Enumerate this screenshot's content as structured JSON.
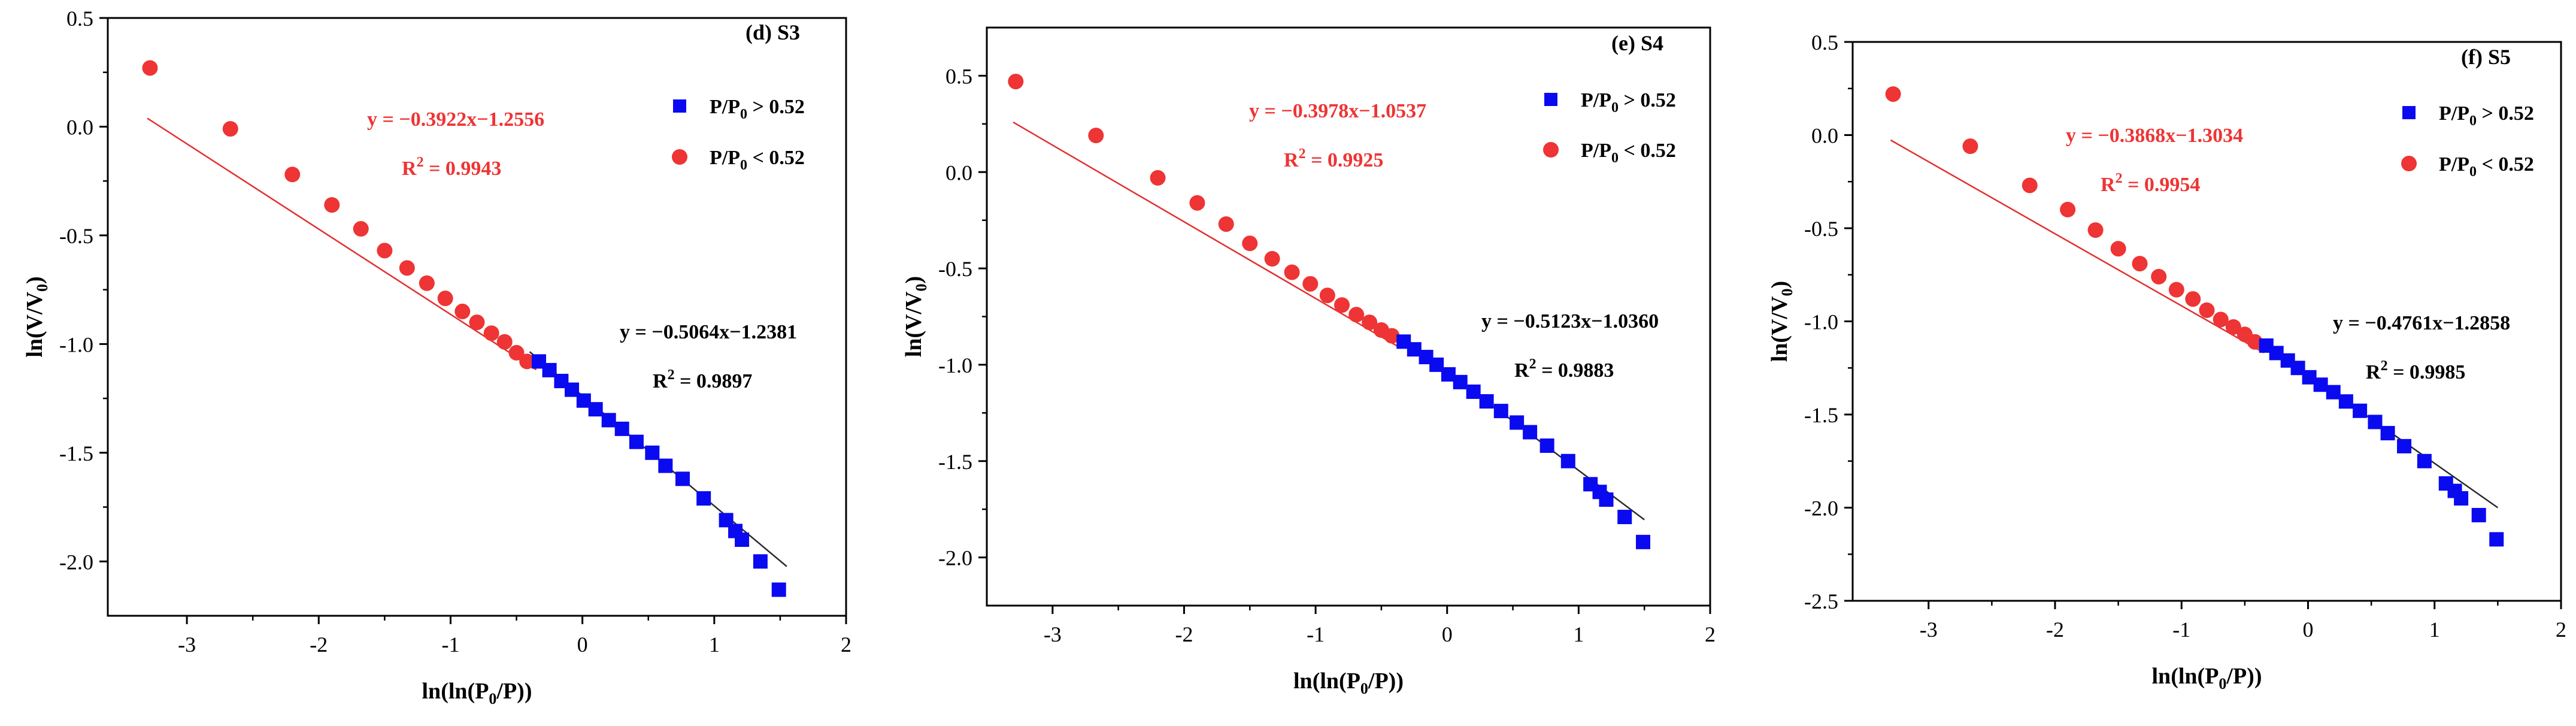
{
  "figure": {
    "colors": {
      "blue": "#0a0af0",
      "red": "#ee3434",
      "fit_red": "#e23030",
      "fit_black": "#2a2a2a",
      "axis": "#000000"
    }
  },
  "chart_data": [
    {
      "type": "scatter",
      "panel_label": "(d) S3",
      "xlabel": "ln(ln(P0/P))",
      "ylabel": "ln(V/V0)",
      "xlim": [
        -3.6,
        2.0
      ],
      "ylim": [
        -2.25,
        0.5
      ],
      "xticks": [
        -3,
        -2,
        -1,
        0,
        1,
        2
      ],
      "yticks": [
        0.5,
        0.0,
        -0.5,
        -1.0,
        -1.5,
        -2.0
      ],
      "ytick_labels": [
        "0.5",
        "0.0",
        "-0.5",
        "-1.0",
        "-1.5",
        "-2.0"
      ],
      "legend": [
        "P/P0 > 0.52",
        "P/P0 < 0.52"
      ],
      "series": [
        {
          "name": "P/P0 < 0.52",
          "marker": "circle",
          "color": "#ee3434",
          "x": [
            -3.28,
            -2.67,
            -2.2,
            -1.9,
            -1.68,
            -1.5,
            -1.33,
            -1.18,
            -1.04,
            -0.91,
            -0.8,
            -0.69,
            -0.59,
            -0.5,
            -0.42
          ],
          "y": [
            0.27,
            -0.01,
            -0.22,
            -0.36,
            -0.47,
            -0.57,
            -0.65,
            -0.72,
            -0.79,
            -0.85,
            -0.9,
            -0.95,
            -0.99,
            -1.04,
            -1.08
          ]
        },
        {
          "name": "P/P0 > 0.52",
          "marker": "square",
          "color": "#0a0af0",
          "x": [
            -0.33,
            -0.25,
            -0.16,
            -0.08,
            0.01,
            0.1,
            0.2,
            0.3,
            0.41,
            0.53,
            0.63,
            0.76,
            0.92,
            1.09,
            1.16,
            1.21,
            1.35,
            1.49
          ],
          "y": [
            -1.08,
            -1.12,
            -1.17,
            -1.21,
            -1.26,
            -1.3,
            -1.35,
            -1.39,
            -1.45,
            -1.5,
            -1.56,
            -1.62,
            -1.71,
            -1.81,
            -1.86,
            -1.9,
            -2.0,
            -2.13
          ]
        }
      ],
      "fits": [
        {
          "equation": "y = −0.3922x−1.2556",
          "r2_label": "R",
          "r2_sup": "2",
          "r2_value": " = 0.9943",
          "slope": -0.3922,
          "intercept": -1.2556,
          "x_range": [
            -3.3,
            -0.35
          ],
          "color": "#e23030"
        },
        {
          "equation": "y = −0.5064x−1.2381",
          "r2_label": "R",
          "r2_sup": "2",
          "r2_value": " = 0.9897",
          "slope": -0.5064,
          "intercept": -1.2381,
          "x_range": [
            -0.4,
            1.55
          ],
          "color": "#2a2a2a"
        }
      ]
    },
    {
      "type": "scatter",
      "panel_label": "(e) S4",
      "xlabel": "ln(ln(P0/P))",
      "ylabel": "ln(V/V0)",
      "xlim": [
        -3.5,
        2.0
      ],
      "ylim": [
        -2.25,
        0.75
      ],
      "xticks": [
        -3,
        -2,
        -1,
        0,
        1,
        2
      ],
      "yticks": [
        0.5,
        0.0,
        -0.5,
        -1.0,
        -1.5,
        -2.0
      ],
      "ytick_labels": [
        "0.5",
        "0.0",
        "-0.5",
        "-1.0",
        "-1.5",
        "-2.0"
      ],
      "legend": [
        "P/P0 > 0.52",
        "P/P0 < 0.52"
      ],
      "series": [
        {
          "name": "P/P0 < 0.52",
          "marker": "circle",
          "color": "#ee3434",
          "x": [
            -3.28,
            -2.67,
            -2.2,
            -1.9,
            -1.68,
            -1.5,
            -1.33,
            -1.18,
            -1.04,
            -0.91,
            -0.8,
            -0.69,
            -0.59,
            -0.5,
            -0.42
          ],
          "y": [
            0.47,
            0.19,
            -0.03,
            -0.16,
            -0.27,
            -0.37,
            -0.45,
            -0.52,
            -0.58,
            -0.64,
            -0.69,
            -0.74,
            -0.78,
            -0.82,
            -0.85
          ]
        },
        {
          "name": "P/P0 > 0.52",
          "marker": "square",
          "color": "#0a0af0",
          "x": [
            -0.33,
            -0.25,
            -0.16,
            -0.08,
            0.01,
            0.1,
            0.2,
            0.3,
            0.41,
            0.53,
            0.63,
            0.76,
            0.92,
            1.09,
            1.16,
            1.21,
            1.35,
            1.49
          ],
          "y": [
            -0.88,
            -0.92,
            -0.96,
            -1.0,
            -1.05,
            -1.09,
            -1.14,
            -1.19,
            -1.24,
            -1.3,
            -1.35,
            -1.42,
            -1.5,
            -1.62,
            -1.66,
            -1.7,
            -1.79,
            -1.92
          ]
        }
      ],
      "fits": [
        {
          "equation": "y = −0.3978x−1.0537",
          "r2_label": "R",
          "r2_sup": "2",
          "r2_value": " = 0.9925",
          "slope": -0.3978,
          "intercept": -1.0537,
          "x_range": [
            -3.3,
            -0.35
          ],
          "color": "#e23030"
        },
        {
          "equation": "y = −0.5123x−1.0360",
          "r2_label": "R",
          "r2_sup": "2",
          "r2_value": " = 0.9883",
          "slope": -0.5123,
          "intercept": -1.036,
          "x_range": [
            -0.4,
            1.5
          ],
          "color": "#2a2a2a"
        }
      ]
    },
    {
      "type": "scatter",
      "panel_label": "(f) S5",
      "xlabel": "ln(ln(P0/P))",
      "ylabel": "ln(V/V0)",
      "xlim": [
        -3.6,
        2.0
      ],
      "ylim": [
        -2.5,
        0.5
      ],
      "xticks": [
        -3,
        -2,
        -1,
        0,
        1,
        2
      ],
      "yticks": [
        0.5,
        0.0,
        -0.5,
        -1.0,
        -1.5,
        -2.0,
        -2.5
      ],
      "ytick_labels": [
        "0.5",
        "0.0",
        "-0.5",
        "-1.0",
        "-1.5",
        "-2.0",
        "-2.5"
      ],
      "legend": [
        "P/P0 > 0.52",
        "P/P0 < 0.52"
      ],
      "series": [
        {
          "name": "P/P0 < 0.52",
          "marker": "circle",
          "color": "#ee3434",
          "x": [
            -3.28,
            -2.67,
            -2.2,
            -1.9,
            -1.68,
            -1.5,
            -1.33,
            -1.18,
            -1.04,
            -0.91,
            -0.8,
            -0.69,
            -0.59,
            -0.5,
            -0.42
          ],
          "y": [
            0.22,
            -0.06,
            -0.27,
            -0.4,
            -0.51,
            -0.61,
            -0.69,
            -0.76,
            -0.83,
            -0.88,
            -0.94,
            -0.99,
            -1.03,
            -1.07,
            -1.11
          ]
        },
        {
          "name": "P/P0 > 0.52",
          "marker": "square",
          "color": "#0a0af0",
          "x": [
            -0.33,
            -0.25,
            -0.16,
            -0.08,
            0.01,
            0.1,
            0.2,
            0.3,
            0.41,
            0.53,
            0.63,
            0.76,
            0.92,
            1.09,
            1.16,
            1.21,
            1.35,
            1.49
          ],
          "y": [
            -1.13,
            -1.17,
            -1.21,
            -1.25,
            -1.3,
            -1.34,
            -1.38,
            -1.43,
            -1.48,
            -1.54,
            -1.6,
            -1.67,
            -1.75,
            -1.87,
            -1.91,
            -1.95,
            -2.04,
            -2.17
          ]
        }
      ],
      "fits": [
        {
          "equation": "y = −0.3868x−1.3034",
          "r2_label": "R",
          "r2_sup": "2",
          "r2_value": " = 0.9954",
          "slope": -0.3868,
          "intercept": -1.3034,
          "x_range": [
            -3.3,
            -0.35
          ],
          "color": "#e23030"
        },
        {
          "equation": "y = −0.4761x−1.2858",
          "r2_label": "R",
          "r2_sup": "2",
          "r2_value": " = 0.9985",
          "slope": -0.4761,
          "intercept": -1.2858,
          "x_range": [
            -0.4,
            1.5
          ],
          "color": "#2a2a2a"
        }
      ]
    }
  ]
}
